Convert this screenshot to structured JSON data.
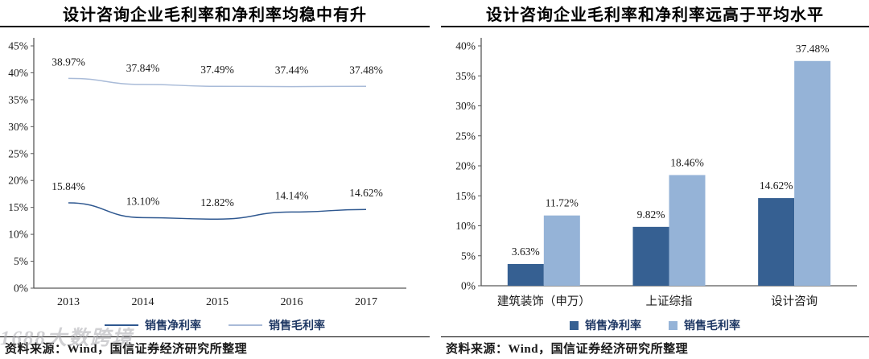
{
  "page": {
    "watermark": "1688大数跨境"
  },
  "chart_data": [
    {
      "type": "line",
      "title": "设计咨询企业毛利率和净利率均稳中有升",
      "x": [
        "2013",
        "2014",
        "2015",
        "2016",
        "2017"
      ],
      "series": [
        {
          "name": "销售净利率",
          "color": "#2F5890",
          "values": [
            15.84,
            13.1,
            12.82,
            14.14,
            14.62
          ],
          "labels": [
            "15.84%",
            "13.10%",
            "12.82%",
            "14.14%",
            "14.62%"
          ]
        },
        {
          "name": "销售毛利率",
          "color": "#A9BBD8",
          "values": [
            38.97,
            37.84,
            37.49,
            37.44,
            37.48
          ],
          "labels": [
            "38.97%",
            "37.84%",
            "37.49%",
            "37.44%",
            "37.48%"
          ]
        }
      ],
      "ylim": [
        0,
        45
      ],
      "yticks": [
        "0%",
        "5%",
        "10%",
        "15%",
        "20%",
        "25%",
        "30%",
        "35%",
        "40%",
        "45%"
      ],
      "grid": false,
      "legend_position": "bottom",
      "source": "资料来源：Wind，国信证券经济研究所整理"
    },
    {
      "type": "bar",
      "title": "设计咨询企业毛利率和净利率远高于平均水平",
      "categories": [
        "建筑装饰（申万）",
        "上证综指",
        "设计咨询"
      ],
      "series": [
        {
          "name": "销售净利率",
          "color": "#366092",
          "values": [
            3.63,
            9.82,
            14.62
          ],
          "labels": [
            "3.63%",
            "9.82%",
            "14.62%"
          ]
        },
        {
          "name": "销售毛利率",
          "color": "#95B3D7",
          "values": [
            11.72,
            18.46,
            37.48
          ],
          "labels": [
            "11.72%",
            "18.46%",
            "37.48%"
          ]
        }
      ],
      "ylim": [
        0,
        40
      ],
      "yticks": [
        "0%",
        "5%",
        "10%",
        "15%",
        "20%",
        "25%",
        "30%",
        "35%",
        "40%"
      ],
      "grid": false,
      "legend_position": "bottom",
      "source": "资料来源：Wind，国信证券经济研究所整理"
    }
  ]
}
